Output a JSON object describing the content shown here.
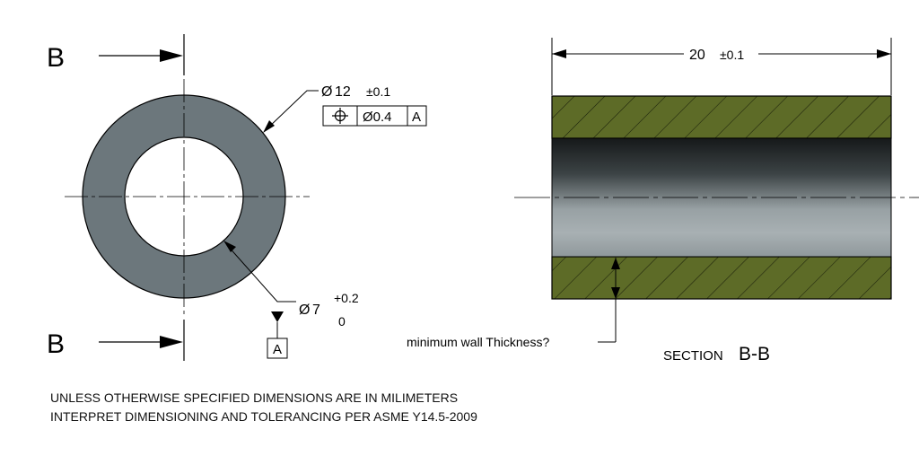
{
  "section_marks": {
    "top_letter": "B",
    "bottom_letter": "B"
  },
  "outer_diameter": {
    "symbol": "Ø",
    "value": "12",
    "tolerance": "±0.1"
  },
  "feature_control_frame": {
    "characteristic_icon": "position-icon",
    "tolerance": "Ø0.4",
    "datum": "A"
  },
  "inner_diameter": {
    "symbol": "Ø",
    "value": "7",
    "upper_tol": "+0.2",
    "lower_tol": "0"
  },
  "datum_feature": {
    "label": "A"
  },
  "length_dimension": {
    "value": "20",
    "tolerance": "±0.1"
  },
  "wall_note": "minimum wall Thickness?",
  "section_title": {
    "prefix": "SECTION",
    "label": "B-B"
  },
  "notes": [
    "UNLESS OTHERWISE SPECIFIED DIMENSIONS ARE IN MILIMETERS",
    "INTERPRET DIMENSIONING AND TOLERANCING PER ASME Y14.5-2009"
  ],
  "colors": {
    "ring_fill": "#6c777c",
    "section_hatch_fill": "#5d6b27",
    "bore_dark": "#16191a",
    "bore_light": "#a8b0b3",
    "line": "#000000"
  }
}
